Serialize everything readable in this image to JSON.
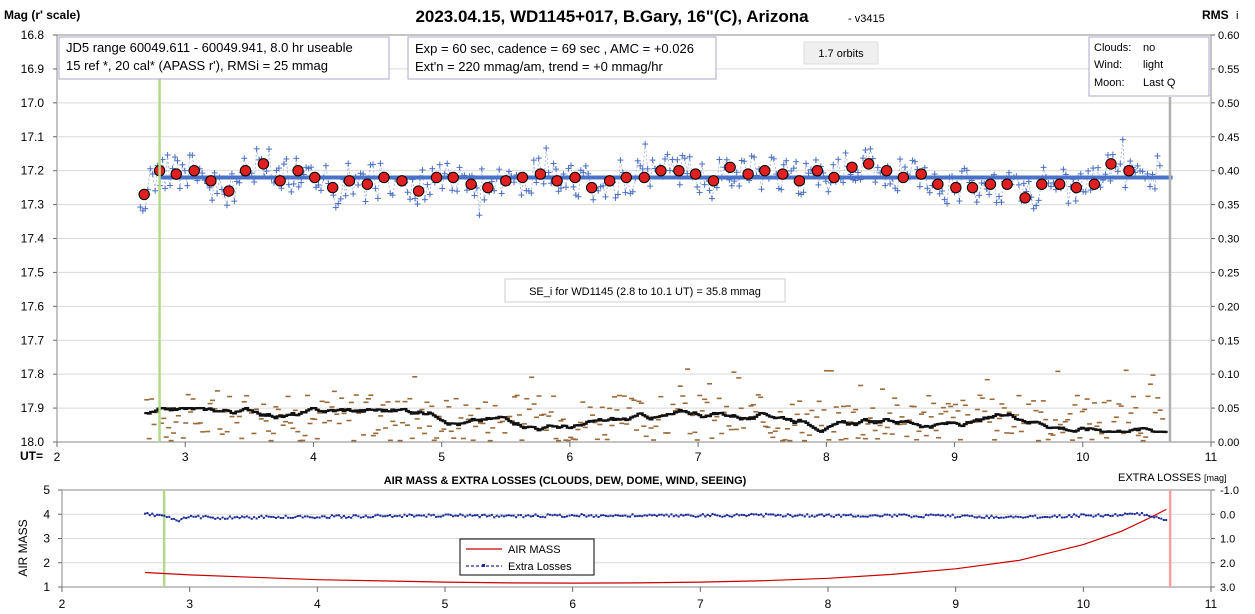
{
  "chart_data": [
    {
      "type": "scatter",
      "title": "2023.04.15, WD1145+017, B.Gary, 16\"(C), Arizona",
      "version": "- v3415",
      "ylabel_left": "Mag (r' scale)",
      "ylabel_right": "RMS",
      "ylabel_right_suffix": "i",
      "xlabel": "UT=",
      "xlim": [
        2,
        11
      ],
      "ylim_left": [
        16.8,
        18.0
      ],
      "ylim_right": [
        0.0,
        0.6
      ],
      "x_ticks": [
        "2",
        "3",
        "4",
        "5",
        "6",
        "7",
        "8",
        "9",
        "10",
        "11"
      ],
      "y_ticks_left": [
        "16.8",
        "16.9",
        "17.0",
        "17.1",
        "17.2",
        "17.3",
        "17.4",
        "17.5",
        "17.6",
        "17.7",
        "17.8",
        "17.9",
        "18.0"
      ],
      "y_ticks_right": [
        "0.60",
        "0.55",
        "0.50",
        "0.45",
        "0.40",
        "0.35",
        "0.30",
        "0.25",
        "0.20",
        "0.15",
        "0.10",
        "0.05",
        "0.00"
      ],
      "info_box_1": [
        "JD5 range 60049.611 - 60049.941, 8.0 hr useable",
        "15 ref *, 20 cal*  (APASS r'), RMSi = 25 mmag"
      ],
      "info_box_2": [
        "Exp = 60 sec, cadence = 69 sec , AMC = +0.026",
        "Ext'n = 220 mmag/am, trend = +0 mmag/hr"
      ],
      "orbits_label": "1.7 orbits",
      "conditions": [
        {
          "label": "Clouds:",
          "value": "no"
        },
        {
          "label": "Wind:",
          "value": "light"
        },
        {
          "label": "Moon:",
          "value": "Last Q"
        }
      ],
      "se_label": "SE_i for WD1145 (2.8 to 10.1 UT) = 35.8 mmag",
      "model_level_mag": 17.22,
      "model_range_ut": [
        2.8,
        10.7
      ],
      "start_marker_ut": 2.8,
      "end_marker_ut": 10.68,
      "binned_magnitudes": {
        "x": [
          2.68,
          2.8,
          2.93,
          3.07,
          3.2,
          3.34,
          3.47,
          3.61,
          3.74,
          3.88,
          4.01,
          4.15,
          4.28,
          4.42,
          4.55,
          4.69,
          4.82,
          4.96,
          5.09,
          5.23,
          5.36,
          5.5,
          5.63,
          5.77,
          5.9,
          6.04,
          6.17,
          6.31,
          6.44,
          6.58,
          6.71,
          6.85,
          6.98,
          7.12,
          7.25,
          7.39,
          7.52,
          7.66,
          7.79,
          7.93,
          8.06,
          8.2,
          8.33,
          8.47,
          8.6,
          8.74,
          8.87,
          9.01,
          9.14,
          9.28,
          9.41,
          9.55,
          9.68,
          9.82,
          9.95,
          10.09,
          10.22,
          10.36
        ],
        "y": [
          17.27,
          17.2,
          17.21,
          17.2,
          17.23,
          17.26,
          17.2,
          17.18,
          17.23,
          17.2,
          17.22,
          17.25,
          17.23,
          17.24,
          17.22,
          17.23,
          17.26,
          17.22,
          17.22,
          17.24,
          17.25,
          17.23,
          17.22,
          17.21,
          17.23,
          17.22,
          17.25,
          17.23,
          17.22,
          17.22,
          17.2,
          17.2,
          17.21,
          17.23,
          17.19,
          17.21,
          17.2,
          17.21,
          17.23,
          17.2,
          17.22,
          17.19,
          17.18,
          17.2,
          17.22,
          17.21,
          17.24,
          17.25,
          17.25,
          17.24,
          17.24,
          17.28,
          17.24,
          17.24,
          17.25,
          17.24,
          17.18,
          17.2
        ]
      },
      "legend_note": "individual magnitudes shown as small blue crosses; RMS shown as brown and black dashes"
    },
    {
      "type": "line",
      "title": "AIR MASS & EXTRA LOSSES (CLOUDS, DEW, DOME, WIND, SEEING)",
      "right_title": "EXTRA LOSSES",
      "right_title_unit": "[mag]",
      "ylabel": "AIR MASS",
      "xlim": [
        2,
        11
      ],
      "ylim_left": [
        1,
        5
      ],
      "ylim_right": [
        3.0,
        -1.0
      ],
      "x_ticks": [
        "2",
        "3",
        "4",
        "5",
        "6",
        "7",
        "8",
        "9",
        "10",
        "11"
      ],
      "y_ticks_left": [
        "5",
        "4",
        "3",
        "2",
        "1"
      ],
      "y_ticks_right": [
        "-1.0",
        "0.0",
        "1.0",
        "2.0",
        "3.0"
      ],
      "series": [
        {
          "name": "AIR MASS",
          "color": "#cc0000",
          "x": [
            2.65,
            3.0,
            3.5,
            4.0,
            4.5,
            5.0,
            5.5,
            6.0,
            6.5,
            7.0,
            7.5,
            8.0,
            8.5,
            9.0,
            9.5,
            10.0,
            10.3,
            10.5,
            10.65
          ],
          "y": [
            1.6,
            1.5,
            1.4,
            1.3,
            1.25,
            1.2,
            1.17,
            1.16,
            1.17,
            1.2,
            1.26,
            1.36,
            1.52,
            1.75,
            2.1,
            2.75,
            3.3,
            3.8,
            4.2
          ]
        },
        {
          "name": "Extra Losses",
          "color": "#1f2f99",
          "x": [
            2.65,
            2.8,
            2.9,
            3.0,
            3.3,
            3.6,
            4.0,
            4.5,
            5.0,
            5.5,
            6.0,
            6.5,
            7.0,
            7.5,
            8.0,
            8.5,
            9.0,
            9.5,
            10.0,
            10.5,
            10.65
          ],
          "y": [
            0.0,
            0.05,
            0.3,
            0.1,
            0.15,
            0.12,
            0.1,
            0.08,
            0.05,
            0.08,
            0.05,
            0.06,
            0.05,
            0.04,
            0.05,
            0.06,
            0.08,
            0.12,
            0.05,
            0.0,
            0.25
          ]
        }
      ]
    }
  ]
}
